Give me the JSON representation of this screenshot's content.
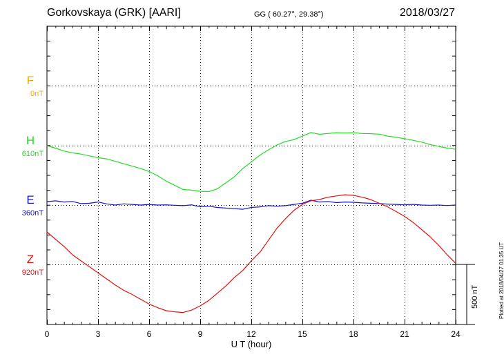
{
  "header": {
    "station": "Gorkovskaya (GRK)  [AARI]",
    "coords": "GG ( 60.27°,  29.38°)",
    "date": "2018/03/27"
  },
  "plotted_note": "Plotted at 2018/04/27 01:35 UT",
  "colors": {
    "F": "#f5a800",
    "H": "#22dd22",
    "E": "#1515c8",
    "Z": "#e01010",
    "frame": "#000000",
    "grid": "#000000"
  },
  "chart_data": {
    "type": "line",
    "xlabel": "U T (hour)",
    "xlim": [
      0,
      24
    ],
    "xticks": [
      "0",
      "3",
      "6",
      "9",
      "12",
      "15",
      "18",
      "21",
      "24"
    ],
    "scale_bar_label": "500 nT",
    "scale_bar_nT": 500,
    "grid": true,
    "series": [
      {
        "name": "F",
        "baseline_label": "0nT",
        "color": "#f5a800",
        "x": [],
        "y": []
      },
      {
        "name": "H",
        "baseline_label": "610nT",
        "color": "#22dd22",
        "x": [
          0,
          0.5,
          1,
          1.5,
          2,
          2.5,
          3,
          3.5,
          4,
          4.5,
          5,
          5.5,
          6,
          6.5,
          7,
          7.5,
          8,
          8.5,
          9,
          9.5,
          10,
          10.5,
          11,
          11.5,
          12,
          12.5,
          13,
          13.5,
          14,
          14.5,
          15,
          15.5,
          16,
          16.5,
          17,
          17.5,
          18,
          18.5,
          19,
          19.5,
          20,
          20.5,
          21,
          21.5,
          22,
          22.5,
          23,
          23.5,
          24
        ],
        "y": [
          610,
          590,
          565,
          550,
          540,
          525,
          510,
          500,
          480,
          460,
          440,
          420,
          395,
          360,
          315,
          280,
          245,
          240,
          230,
          228,
          250,
          300,
          350,
          420,
          475,
          530,
          575,
          615,
          645,
          660,
          690,
          720,
          705,
          712,
          718,
          715,
          718,
          712,
          710,
          706,
          690,
          680,
          668,
          655,
          640,
          620,
          605,
          590,
          580
        ]
      },
      {
        "name": "E",
        "baseline_label": "360nT",
        "color": "#1515c8",
        "x": [
          0,
          0.5,
          1,
          1.5,
          2,
          2.5,
          3,
          3.5,
          4,
          4.5,
          5,
          5.5,
          6,
          6.5,
          7,
          7.5,
          8,
          8.5,
          9,
          9.5,
          10,
          10.5,
          11,
          11.5,
          12,
          12.5,
          13,
          13.5,
          14,
          14.5,
          15,
          15.5,
          16,
          16.5,
          17,
          17.5,
          18,
          18.5,
          19,
          19.5,
          20,
          20.5,
          21,
          21.5,
          22,
          22.5,
          23,
          23.5,
          24
        ],
        "y": [
          388,
          395,
          385,
          390,
          372,
          375,
          385,
          370,
          360,
          370,
          365,
          360,
          365,
          360,
          362,
          358,
          355,
          362,
          345,
          350,
          340,
          335,
          330,
          325,
          340,
          345,
          355,
          350,
          355,
          365,
          375,
          400,
          385,
          390,
          380,
          385,
          383,
          378,
          375,
          372,
          368,
          365,
          362,
          366,
          360,
          358,
          360,
          356,
          360
        ]
      },
      {
        "name": "Z",
        "baseline_label": "920nT",
        "color": "#e01010",
        "x": [
          0,
          0.5,
          1,
          1.5,
          2,
          2.5,
          3,
          3.5,
          4,
          4.5,
          5,
          5.5,
          6,
          6.5,
          7,
          7.5,
          8,
          8.5,
          9,
          9.5,
          10,
          10.5,
          11,
          11.5,
          12,
          12.5,
          13,
          13.5,
          14,
          14.5,
          15,
          15.5,
          16,
          16.5,
          17,
          17.5,
          18,
          18.5,
          19,
          19.5,
          20,
          20.5,
          21,
          21.5,
          22,
          22.5,
          23,
          23.5,
          24
        ],
        "y": [
          1190,
          1130,
          1070,
          1000,
          950,
          900,
          850,
          800,
          750,
          705,
          670,
          630,
          590,
          560,
          535,
          525,
          520,
          540,
          575,
          620,
          680,
          740,
          810,
          870,
          950,
          1020,
          1120,
          1220,
          1300,
          1370,
          1420,
          1450,
          1460,
          1480,
          1490,
          1500,
          1495,
          1480,
          1460,
          1430,
          1400,
          1360,
          1320,
          1270,
          1210,
          1150,
          1080,
          1000,
          930
        ]
      }
    ]
  }
}
